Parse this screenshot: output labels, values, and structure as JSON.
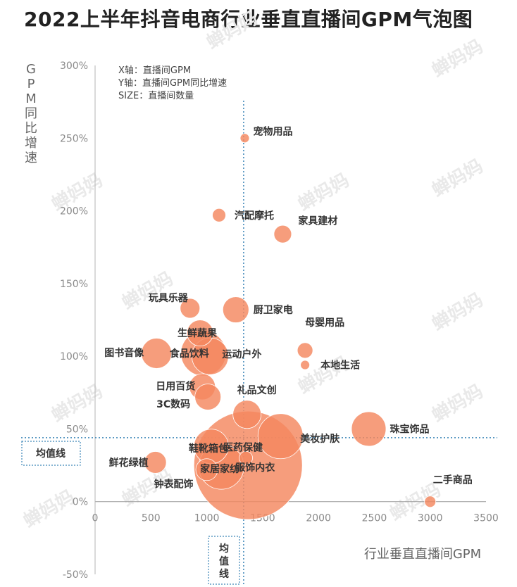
{
  "title": "2022上半年抖音电商行业垂直直播间GPM气泡图",
  "watermark": "蝉妈妈",
  "chart_data": {
    "type": "scatter",
    "title": "2022上半年抖音电商行业垂直直播间GPM气泡图",
    "xlabel": "行业垂直直播间GPM",
    "ylabel": "GPM同比增速",
    "xlim": [
      0,
      3500
    ],
    "ylim": [
      -0.5,
      3.0
    ],
    "x_ticks": [
      "0",
      "500",
      "1000",
      "1500",
      "2000",
      "2500",
      "3000",
      "3500"
    ],
    "y_ticks": [
      "-50%",
      "0%",
      "50%",
      "100%",
      "150%",
      "200%",
      "250%",
      "300%"
    ],
    "legend_lines": [
      "X轴：直播间GPM",
      "Y轴：直播间GPM同比增速",
      "SIZE：直播间数量"
    ],
    "avg_x": 1330,
    "avg_y": 0.44,
    "avg_x_label": "均值线",
    "avg_y_label": "均值线",
    "bubble_color": "#f4875f",
    "points": [
      {
        "name": "宠物用品",
        "x": 1340,
        "y": 2.5,
        "size": 3
      },
      {
        "name": "汽配摩托",
        "x": 1110,
        "y": 1.97,
        "size": 5
      },
      {
        "name": "家具建材",
        "x": 1680,
        "y": 1.84,
        "size": 7
      },
      {
        "name": "玩具乐器",
        "x": 850,
        "y": 1.33,
        "size": 8
      },
      {
        "name": "厨卫家电",
        "x": 1260,
        "y": 1.32,
        "size": 11
      },
      {
        "name": "母婴用品",
        "x": 1880,
        "y": 1.04,
        "size": 6
      },
      {
        "name": "生鲜蔬果",
        "x": 940,
        "y": 1.16,
        "size": 11
      },
      {
        "name": "本地生活",
        "x": 1880,
        "y": 0.94,
        "size": 3
      },
      {
        "name": "图书音像",
        "x": 550,
        "y": 1.02,
        "size": 13
      },
      {
        "name": "食品饮料",
        "x": 970,
        "y": 1.02,
        "size": 20
      },
      {
        "name": "运动户外",
        "x": 1030,
        "y": 1.0,
        "size": 16
      },
      {
        "name": "日用百货",
        "x": 960,
        "y": 0.79,
        "size": 11
      },
      {
        "name": "3C数码",
        "x": 1010,
        "y": 0.72,
        "size": 11
      },
      {
        "name": "礼品文创",
        "x": 1360,
        "y": 0.6,
        "size": 12
      },
      {
        "name": "美妆护肤",
        "x": 1660,
        "y": 0.45,
        "size": 20
      },
      {
        "name": "珠宝饰品",
        "x": 2450,
        "y": 0.5,
        "size": 15
      },
      {
        "name": "鲜花绿植",
        "x": 540,
        "y": 0.27,
        "size": 9
      },
      {
        "name": "鞋靴箱包",
        "x": 1040,
        "y": 0.38,
        "size": 15
      },
      {
        "name": "医药保健",
        "x": 1350,
        "y": 0.3,
        "size": 5
      },
      {
        "name": "家居家纺",
        "x": 1130,
        "y": 0.24,
        "size": 20
      },
      {
        "name": "服饰内衣",
        "x": 1370,
        "y": 0.25,
        "size": 50
      },
      {
        "name": "钟表配饰",
        "x": 1000,
        "y": 0.22,
        "size": 9
      },
      {
        "name": "二手商品",
        "x": 3000,
        "y": 0.0,
        "size": 4
      }
    ]
  }
}
